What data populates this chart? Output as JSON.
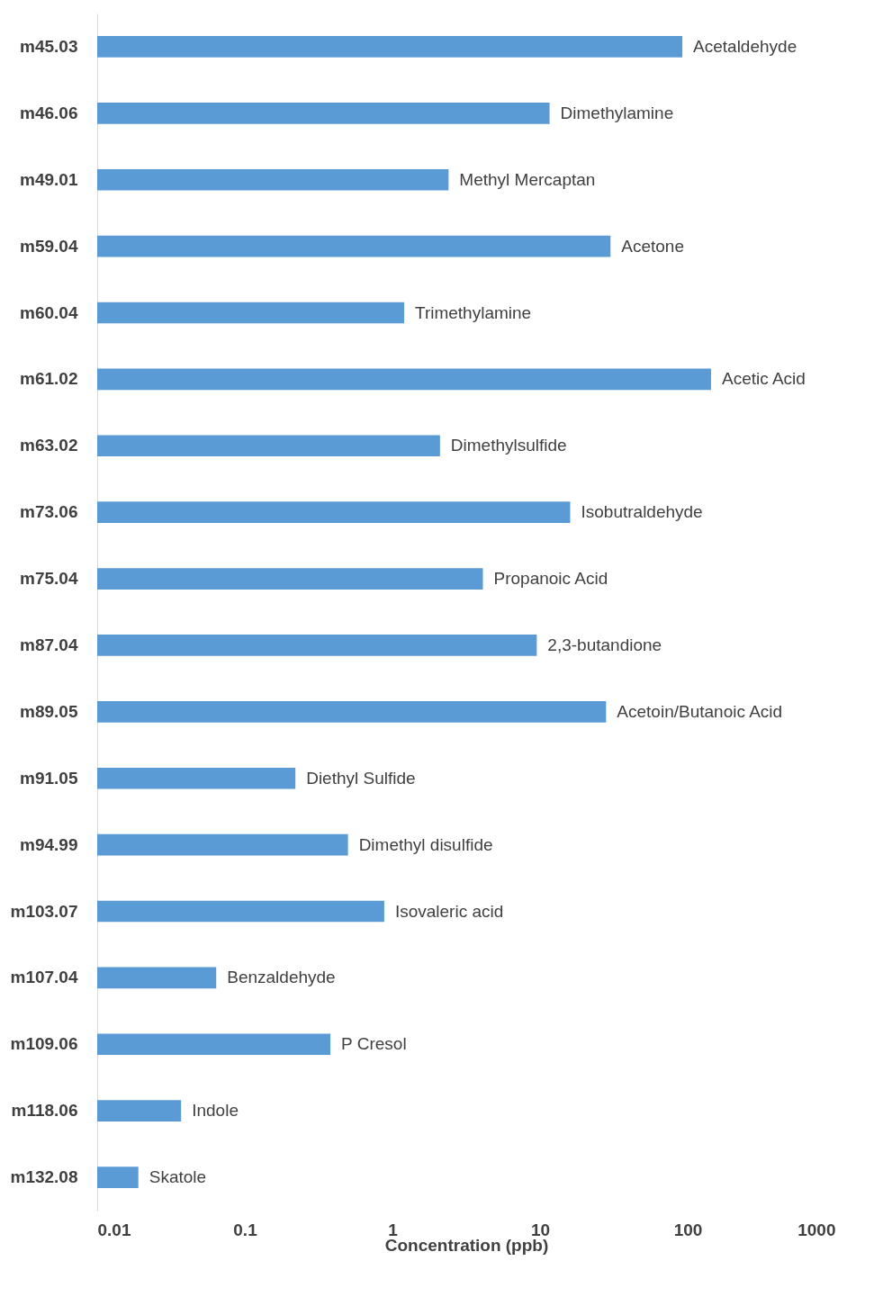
{
  "chart_data": {
    "type": "bar",
    "orientation": "horizontal",
    "log": "x",
    "xlabel": "Concentration (ppb)",
    "categories": [
      "m45.03",
      "m46.06",
      "m49.01",
      "m59.04",
      "m60.04",
      "m61.02",
      "m63.02",
      "m73.06",
      "m75.04",
      "m87.04",
      "m89.05",
      "m91.05",
      "m94.99",
      "m103.07",
      "m107.04",
      "m109.06",
      "m118.06",
      "m132.08"
    ],
    "values": [
      92,
      11.6,
      2.4,
      30,
      1.2,
      144,
      2.1,
      16,
      4.1,
      9.5,
      28,
      0.22,
      0.5,
      0.88,
      0.064,
      0.38,
      0.037,
      0.019
    ],
    "color": "#5b9bd5",
    "xlim": [
      0.01,
      1000
    ],
    "xticks": [
      0.01,
      0.1,
      1,
      10,
      100,
      1000
    ],
    "grid": false,
    "annotations": [
      {
        "text": "Acetaldehyde",
        "x": 92,
        "y": "m45.03"
      },
      {
        "text": "Dimethylamine",
        "x": 11.6,
        "y": "m46.06"
      },
      {
        "text": "Methyl Mercaptan",
        "x": 2.4,
        "y": "m49.01"
      },
      {
        "text": "Acetone",
        "x": 30,
        "y": "m59.04"
      },
      {
        "text": "Trimethylamine",
        "x": 1.2,
        "y": "m60.04"
      },
      {
        "text": "Acetic Acid",
        "x": 144,
        "y": "m61.02"
      },
      {
        "text": "Dimethylsulfide",
        "x": 2.1,
        "y": "m63.02"
      },
      {
        "text": "Isobutraldehyde",
        "x": 16,
        "y": "m73.06"
      },
      {
        "text": "Propanoic Acid",
        "x": 4.1,
        "y": "m75.04"
      },
      {
        "text": "2,3-butandione",
        "x": 9.5,
        "y": "m87.04"
      },
      {
        "text": "Acetoin/Butanoic Acid",
        "x": 28,
        "y": "m89.05"
      },
      {
        "text": "Diethyl Sulfide",
        "x": 0.22,
        "y": "m91.05"
      },
      {
        "text": "Dimethyl disulfide",
        "x": 0.5,
        "y": "m94.99"
      },
      {
        "text": "Isovaleric acid",
        "x": 0.88,
        "y": "m103.07"
      },
      {
        "text": "Benzaldehyde",
        "x": 0.064,
        "y": "m107.04"
      },
      {
        "text": "P Cresol",
        "x": 0.38,
        "y": "m109.06"
      },
      {
        "text": "Indole",
        "x": 0.037,
        "y": "m118.06"
      },
      {
        "text": "Skatole",
        "x": 0.019,
        "y": "m132.08"
      }
    ]
  }
}
